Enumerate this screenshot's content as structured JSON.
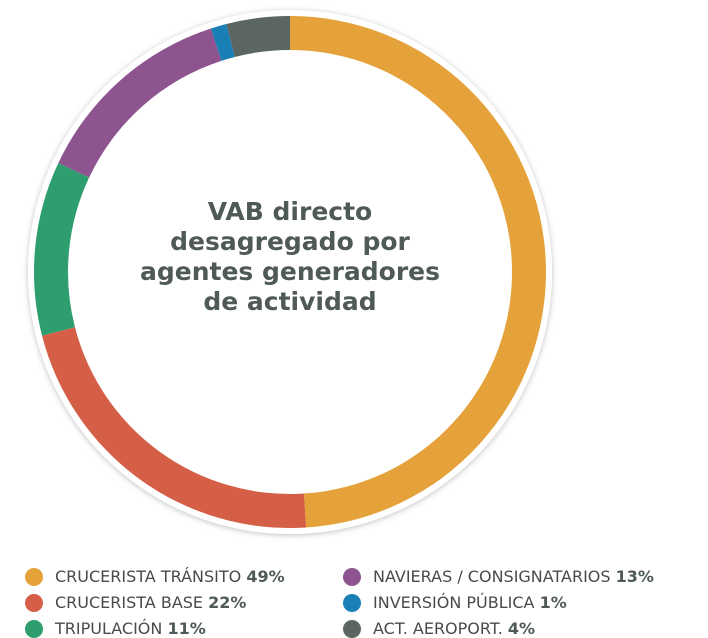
{
  "chart_data": {
    "type": "donut",
    "title": [
      "VAB directo",
      "desagregado por",
      "agentes generadores",
      "de actividad"
    ],
    "categories": [
      "CRUCERISTA TRÁNSITO",
      "CRUCERISTA BASE",
      "TRIPULACIÓN",
      "NAVIERAS / CONSIGNATARIOS",
      "INVERSIÓN PÚBLICA",
      "ACT. AEROPORT."
    ],
    "values": [
      49,
      22,
      11,
      13,
      1,
      4
    ],
    "value_labels": [
      "49%",
      "22%",
      "11%",
      "13%",
      "1%",
      "4%"
    ],
    "colors": [
      "#e5a23a",
      "#d45f46",
      "#2e9e6e",
      "#8e5490",
      "#1a7fb5",
      "#5b6663"
    ]
  }
}
